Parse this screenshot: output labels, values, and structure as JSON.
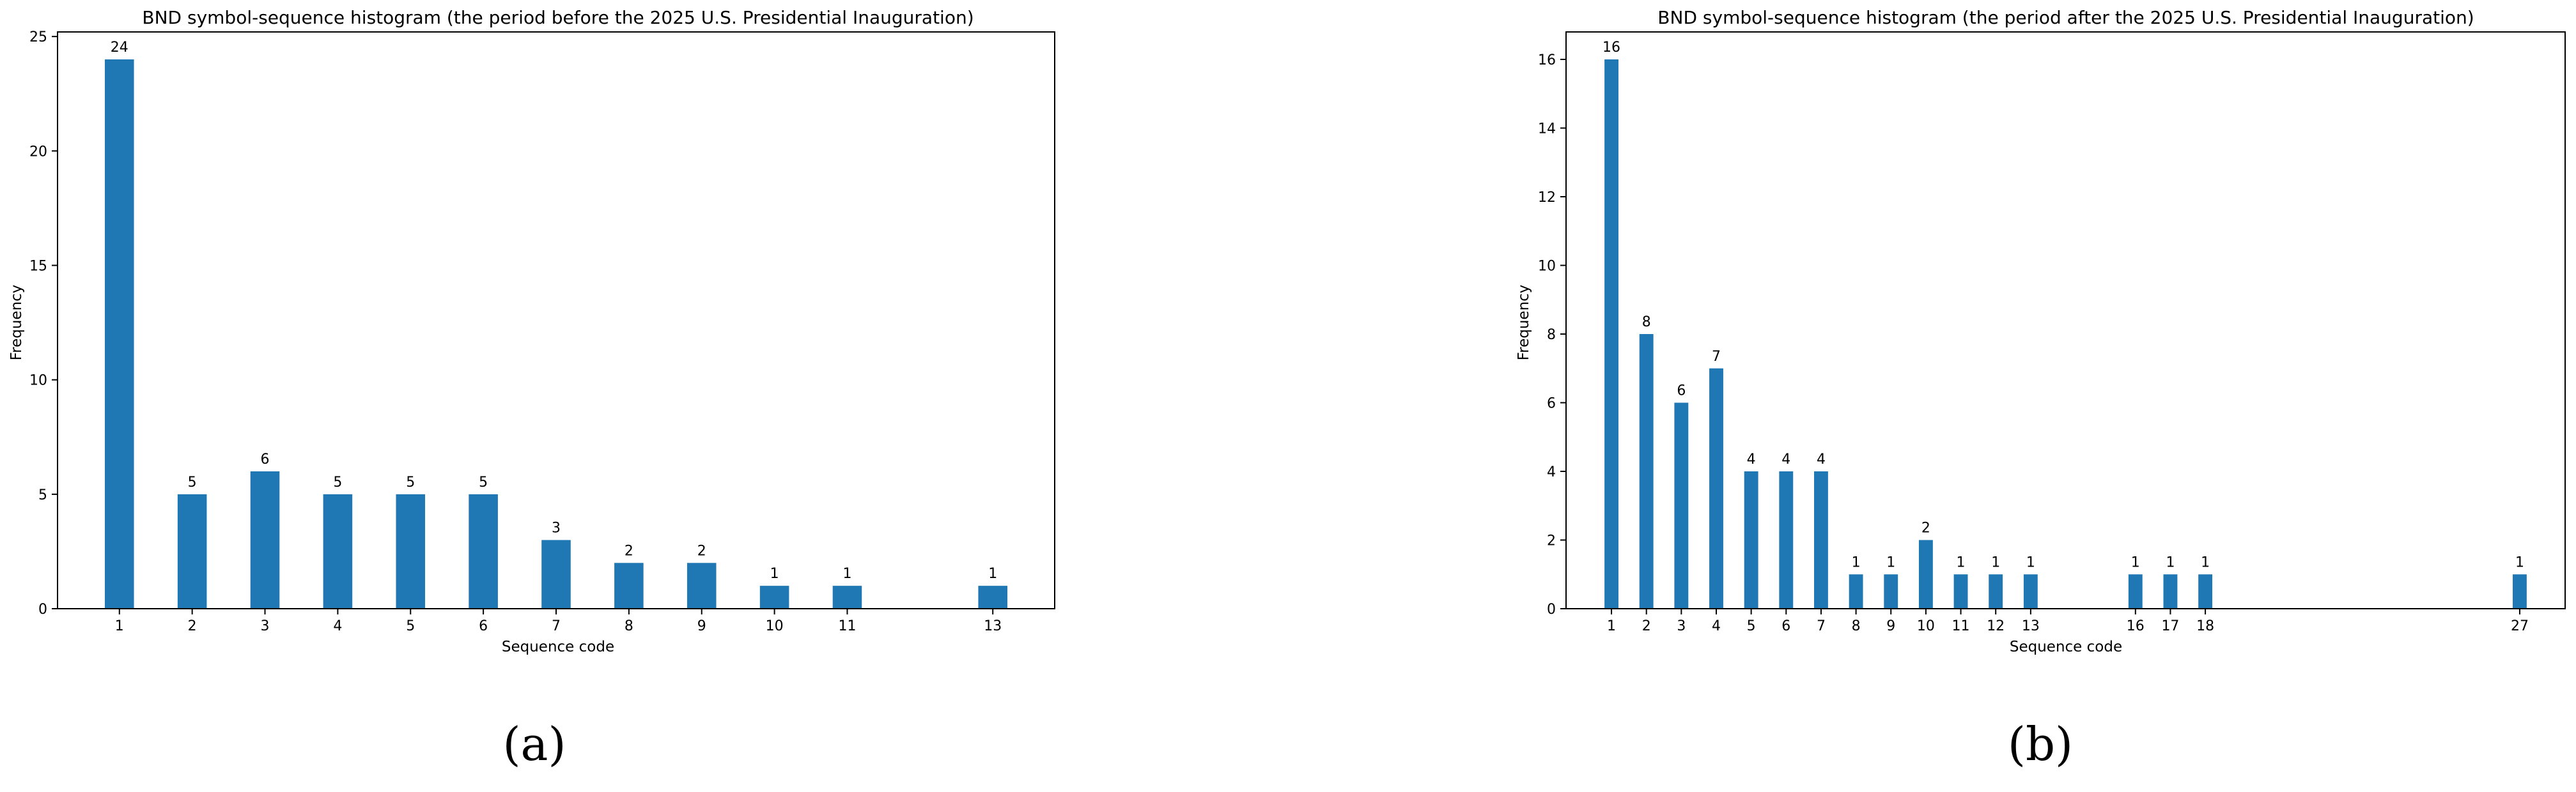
{
  "colors": {
    "bar": "#1f77b4"
  },
  "chart_data": [
    {
      "type": "bar",
      "title": "BND symbol-sequence histogram (the period before the 2025 U.S. Presidential Inauguration)",
      "xlabel": "Sequence code",
      "ylabel": "Frequency",
      "caption": "(a)",
      "categories": [
        1,
        2,
        3,
        4,
        5,
        6,
        7,
        8,
        9,
        10,
        11,
        13
      ],
      "values": [
        24,
        5,
        6,
        5,
        5,
        5,
        3,
        2,
        2,
        1,
        1,
        1
      ],
      "xlim": [
        0.15,
        13.85
      ],
      "ylim": [
        0,
        25.2
      ],
      "yticks": [
        0,
        5,
        10,
        15,
        20,
        25
      ],
      "grid": false
    },
    {
      "type": "bar",
      "title": "BND symbol-sequence histogram (the period after the 2025 U.S. Presidential Inauguration)",
      "xlabel": "Sequence code",
      "ylabel": "Frequency",
      "caption": "(b)",
      "categories": [
        1,
        2,
        3,
        4,
        5,
        6,
        7,
        8,
        9,
        10,
        11,
        12,
        13,
        16,
        17,
        18,
        27
      ],
      "values": [
        16,
        8,
        6,
        7,
        4,
        4,
        4,
        1,
        1,
        2,
        1,
        1,
        1,
        1,
        1,
        1,
        1
      ],
      "xlim": [
        -0.3,
        28.3
      ],
      "ylim": [
        0,
        16.8
      ],
      "yticks": [
        0,
        2,
        4,
        6,
        8,
        10,
        12,
        14,
        16
      ],
      "grid": false
    }
  ]
}
